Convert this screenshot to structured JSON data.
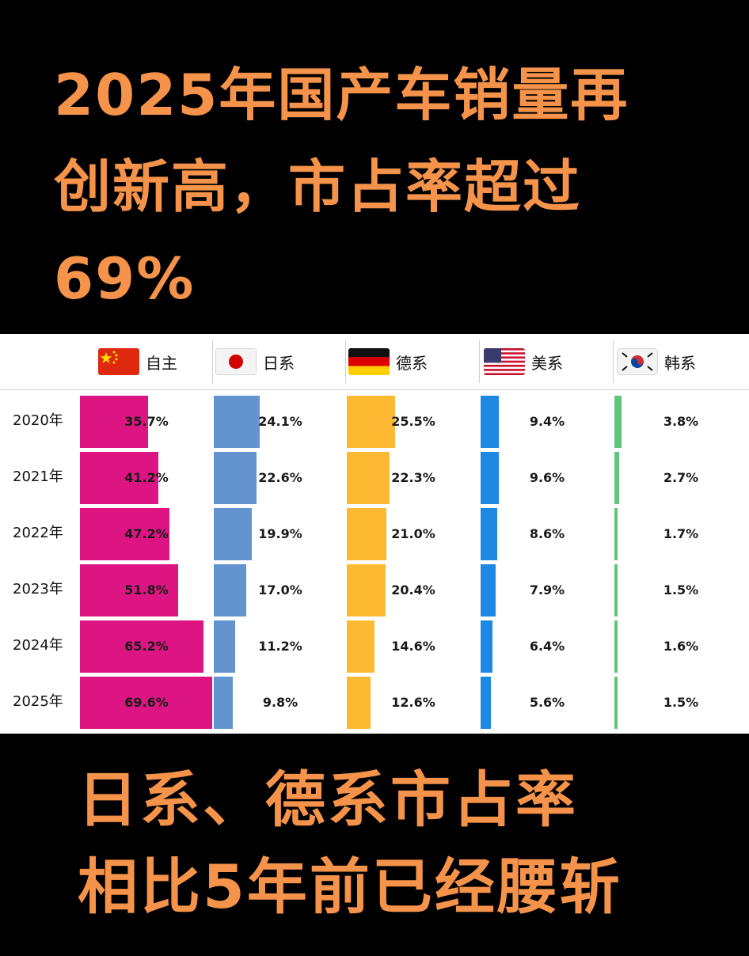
{
  "headline": {
    "line1": "2025年国产车销量再",
    "line2": "创新高，市占率超过",
    "line3": "69%"
  },
  "footer": {
    "line1": "日系、德系市占率",
    "line2": "相比5年前已经腰斩"
  },
  "colors": {
    "headline_text": "#F5934A",
    "自主": "#DC1583",
    "日系": "#6494CF",
    "德系": "#FDB932",
    "美系": "#1E88E5",
    "韩系": "#5EC67A"
  },
  "chart_data": {
    "type": "bar",
    "orientation": "horizontal-small-multiples",
    "categories": [
      "2020年",
      "2021年",
      "2022年",
      "2023年",
      "2024年",
      "2025年"
    ],
    "series": [
      {
        "name": "自主",
        "flag": "china-flag-icon",
        "values": [
          35.7,
          41.2,
          47.2,
          51.8,
          65.2,
          69.6
        ],
        "labels": [
          "35.7%",
          "41.2%",
          "47.2%",
          "51.8%",
          "65.2%",
          "69.6%"
        ]
      },
      {
        "name": "日系",
        "flag": "japan-flag-icon",
        "values": [
          24.1,
          22.6,
          19.9,
          17.0,
          11.2,
          9.8
        ],
        "labels": [
          "24.1%",
          "22.6%",
          "19.9%",
          "17.0%",
          "11.2%",
          "9.8%"
        ]
      },
      {
        "name": "德系",
        "flag": "germany-flag-icon",
        "values": [
          25.5,
          22.3,
          21.0,
          20.4,
          14.6,
          12.6
        ],
        "labels": [
          "25.5%",
          "22.3%",
          "21.0%",
          "20.4%",
          "14.6%",
          "12.6%"
        ]
      },
      {
        "name": "美系",
        "flag": "usa-flag-icon",
        "values": [
          9.4,
          9.6,
          8.6,
          7.9,
          6.4,
          5.6
        ],
        "labels": [
          "9.4%",
          "9.6%",
          "8.6%",
          "7.9%",
          "6.4%",
          "5.6%"
        ]
      },
      {
        "name": "韩系",
        "flag": "korea-flag-icon",
        "values": [
          3.8,
          2.7,
          1.7,
          1.5,
          1.6,
          1.5
        ],
        "labels": [
          "3.8%",
          "2.7%",
          "1.7%",
          "1.5%",
          "1.6%",
          "1.5%"
        ]
      }
    ]
  }
}
